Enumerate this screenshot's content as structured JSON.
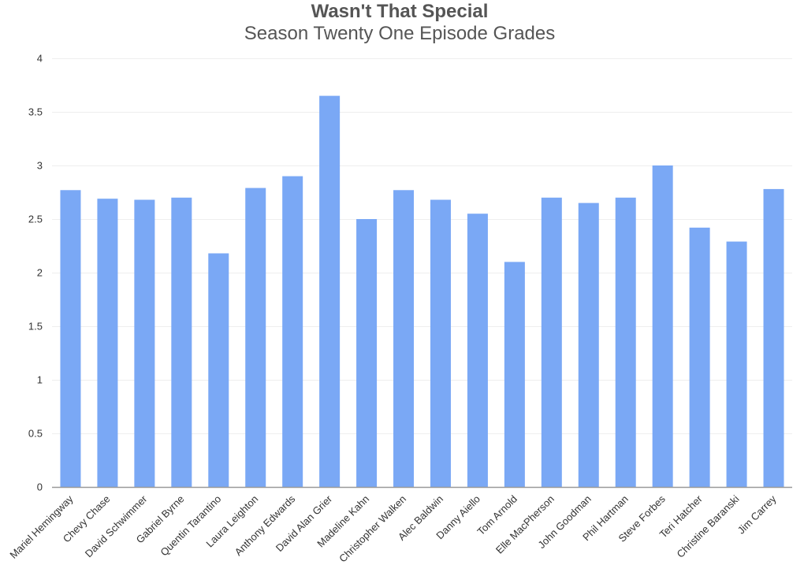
{
  "chart_data": {
    "type": "bar",
    "title": "Wasn't That Special",
    "subtitle": "Season Twenty One Episode Grades",
    "xlabel": "",
    "ylabel": "",
    "ylim": [
      0,
      4
    ],
    "yticks": [
      "0",
      "0.5",
      "1",
      "1.5",
      "2",
      "2.5",
      "3",
      "3.5",
      "4"
    ],
    "grid": true,
    "legend": "none",
    "bar_color": "#7aa8f5",
    "categories": [
      "Mariel Hemingway",
      "Chevy Chase",
      "David Schwimmer",
      "Gabriel Byrne",
      "Quentin Tarantino",
      "Laura Leighton",
      "Anthony Edwards",
      "David Alan Grier",
      "Madeline Kahn",
      "Christopher Walken",
      "Alec Baldwin",
      "Danny Aiello",
      "Tom Arnold",
      "Elle MacPherson",
      "John Goodman",
      "Phil Hartman",
      "Steve Forbes",
      "Teri Hatcher",
      "Christine Baranski",
      "Jim Carrey"
    ],
    "values": [
      2.77,
      2.69,
      2.68,
      2.7,
      2.18,
      2.79,
      2.9,
      3.65,
      2.5,
      2.77,
      2.68,
      2.55,
      2.1,
      2.7,
      2.65,
      2.7,
      3.0,
      2.42,
      2.29,
      2.78
    ]
  }
}
